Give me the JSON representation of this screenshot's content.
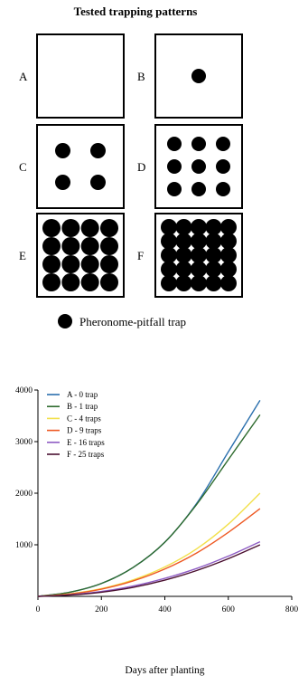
{
  "figure": {
    "title": "Tested trapping patterns",
    "patterns": [
      {
        "label": "A",
        "grid": 0
      },
      {
        "label": "B",
        "grid": 1
      },
      {
        "label": "C",
        "grid": 2
      },
      {
        "label": "D",
        "grid": 3
      },
      {
        "label": "E",
        "grid": 4
      },
      {
        "label": "F",
        "grid": 5
      }
    ],
    "legend_text": "Pheronome-pitfall trap"
  },
  "chart_data": {
    "type": "line",
    "xlabel": "Days after planting",
    "ylabel": "",
    "xlim": [
      0,
      800
    ],
    "ylim": [
      0,
      4000
    ],
    "xticks": [
      0,
      200,
      400,
      600,
      800
    ],
    "yticks": [
      1000,
      2000,
      3000,
      4000
    ],
    "x": [
      0,
      100,
      200,
      300,
      400,
      500,
      600,
      700
    ],
    "series": [
      {
        "name": "A - 0 trap",
        "color": "#2a6fad",
        "values": [
          0,
          80,
          250,
          560,
          1050,
          1800,
          2800,
          3800
        ]
      },
      {
        "name": "B - 1 trap",
        "color": "#2e6b2e",
        "values": [
          0,
          80,
          250,
          560,
          1050,
          1780,
          2650,
          3520
        ]
      },
      {
        "name": "C - 4 traps",
        "color": "#f2e04a",
        "values": [
          0,
          50,
          150,
          320,
          570,
          920,
          1400,
          2000
        ]
      },
      {
        "name": "D - 9 traps",
        "color": "#ee5a24",
        "values": [
          0,
          45,
          140,
          300,
          530,
          840,
          1240,
          1700
        ]
      },
      {
        "name": "E - 16 traps",
        "color": "#8e5cc4",
        "values": [
          0,
          30,
          95,
          200,
          350,
          540,
          780,
          1060
        ]
      },
      {
        "name": "F - 25 traps",
        "color": "#4a1030",
        "values": [
          0,
          25,
          80,
          175,
          315,
          500,
          730,
          1000
        ]
      }
    ],
    "grid": false,
    "legend_position": "top-left"
  }
}
